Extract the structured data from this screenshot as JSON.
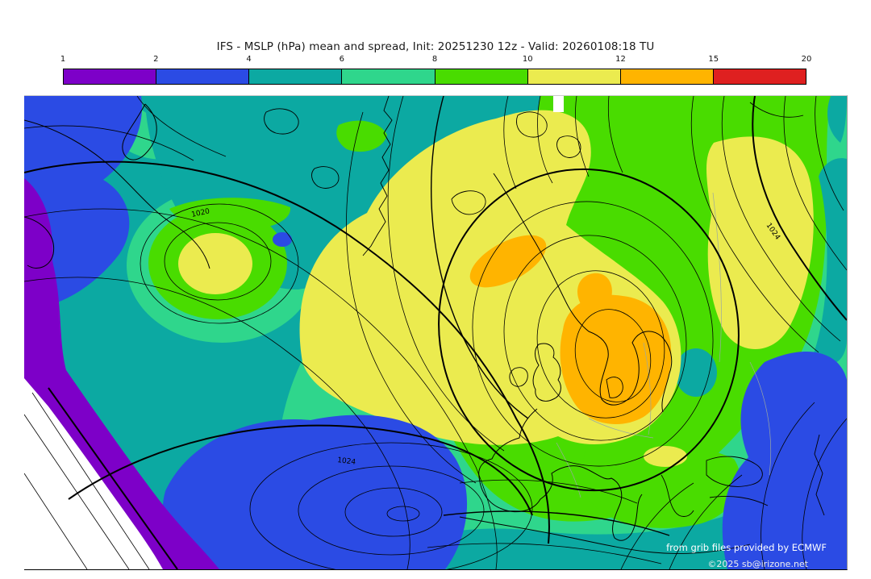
{
  "title": "IFS - MSLP (hPa) mean and spread, Init: 20251230 12z - Valid: 20260108:18 TU",
  "colorbar": {
    "ticks": [
      "1",
      "2",
      "4",
      "6",
      "8",
      "10",
      "12",
      "15",
      "20"
    ],
    "segments": [
      {
        "label": "1-2",
        "color": "#7D00C8"
      },
      {
        "label": "2-4",
        "color": "#2B4BE4"
      },
      {
        "label": "4-6",
        "color": "#0CA9A2"
      },
      {
        "label": "6-8",
        "color": "#2FD68C"
      },
      {
        "label": "8-10",
        "color": "#49DC00"
      },
      {
        "label": "10-12",
        "color": "#EBEB4F"
      },
      {
        "label": "12-15",
        "color": "#FFB400"
      },
      {
        "label": "15-20",
        "color": "#DF2020"
      }
    ]
  },
  "map": {
    "contour_labels": {
      "west_high": "1020",
      "azores_high": "1024",
      "east_ridge": "1024"
    },
    "credits": {
      "line1": "from grib files provided by ECMWF",
      "line2": "©2025 sb@irizone.net"
    }
  },
  "chart_data": {
    "type": "heatmap",
    "title": "IFS - MSLP (hPa) mean and spread, Init: 20251230 12z - Valid: 20260108:18 TU",
    "legend_entries": [
      "1",
      "2",
      "4",
      "6",
      "8",
      "10",
      "12",
      "15",
      "20"
    ],
    "legend_colors": [
      "#7D00C8",
      "#2B4BE4",
      "#0CA9A2",
      "#2FD68C",
      "#49DC00",
      "#EBEB4F",
      "#FFB400",
      "#DF2020"
    ],
    "units": "hPa spread",
    "contour_values_visible": [
      1020,
      1024
    ]
  }
}
